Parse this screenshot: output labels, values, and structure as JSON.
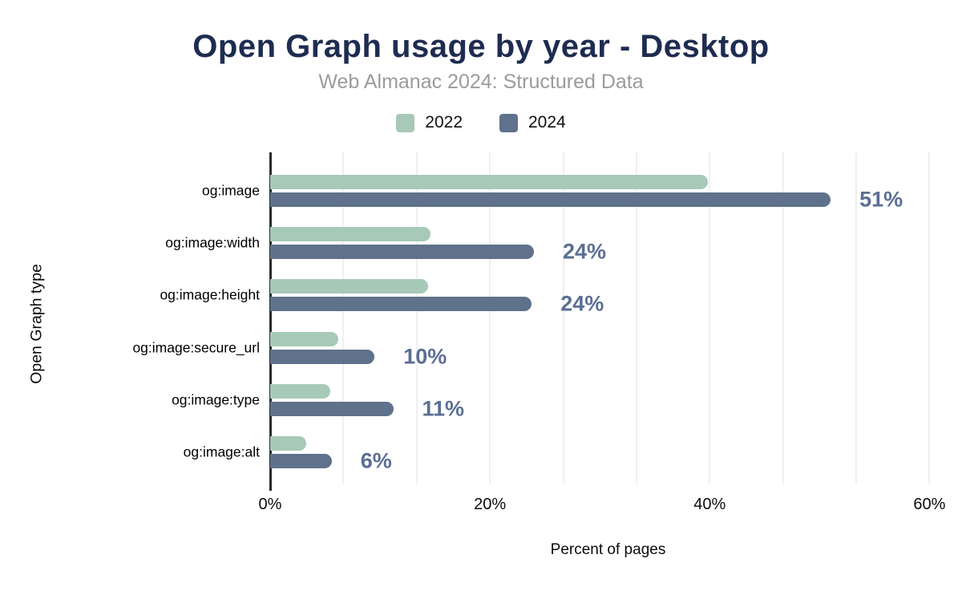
{
  "title": "Open Graph usage by year - Desktop",
  "subtitle": "Web Almanac 2024: Structured Data",
  "x_axis_title": "Percent of pages",
  "y_axis_title": "Open Graph type",
  "colors": {
    "title": "#1e2c51",
    "subtitle": "#9b9b9b",
    "series_2022": "#a7c9b8",
    "series_2024": "#5f718b",
    "value_label": "#5b6e93",
    "gridline": "#f0f0f0",
    "axis_line": "#2b2b2b"
  },
  "chart_data": {
    "type": "bar",
    "orientation": "horizontal",
    "title": "Open Graph usage by year - Desktop",
    "subtitle": "Web Almanac 2024: Structured Data",
    "xlabel": "Percent of pages",
    "ylabel": "Open Graph type",
    "legend_position": "top",
    "grid": true,
    "categories": [
      "og:image",
      "og:image:width",
      "og:image:height",
      "og:image:secure_url",
      "og:image:type",
      "og:image:alt"
    ],
    "series": [
      {
        "name": "2022",
        "color": "#a7c9b8",
        "values": [
          39.8,
          14.6,
          14.4,
          6.2,
          5.5,
          3.3
        ],
        "labels": [
          "",
          "",
          "",
          "",
          "",
          ""
        ]
      },
      {
        "name": "2024",
        "color": "#5f718b",
        "values": [
          51,
          24,
          23.8,
          9.5,
          11.2,
          5.6
        ],
        "labels": [
          "51%",
          "24%",
          "24%",
          "10%",
          "11%",
          "6%"
        ]
      }
    ],
    "xlim": [
      0,
      61.5
    ],
    "x_ticks": [
      {
        "label": "0%",
        "value": 0
      },
      {
        "label": "20%",
        "value": 20
      },
      {
        "label": "40%",
        "value": 40
      },
      {
        "label": "60%",
        "value": 60
      }
    ],
    "gridline_step": 6.6667,
    "gridline_max": 60
  }
}
